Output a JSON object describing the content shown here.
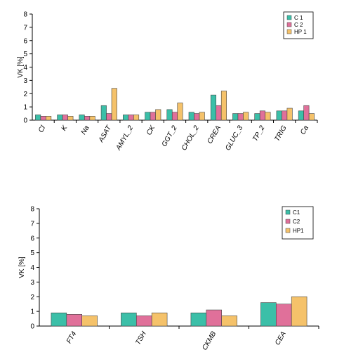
{
  "chart_data": [
    {
      "type": "bar",
      "ylabel": "VK  [%]",
      "ylim": [
        0,
        8
      ],
      "yticks": [
        0,
        1,
        2,
        3,
        4,
        5,
        6,
        7,
        8
      ],
      "grid": false,
      "legend": "top-right",
      "categories": [
        "Cl",
        "K",
        "Na",
        "ASAT",
        "AMYL_2",
        "CK",
        "GGT_2",
        "CHOL_2",
        "CREA",
        "GLUC_3",
        "TP_2",
        "TRIG",
        "Ca"
      ],
      "series": [
        {
          "name": "C 1",
          "color": "#3bbfa8",
          "values": [
            0.4,
            0.4,
            0.4,
            1.1,
            0.4,
            0.6,
            0.8,
            0.6,
            1.9,
            0.5,
            0.5,
            0.7,
            0.7
          ]
        },
        {
          "name": "C 2",
          "color": "#e0709a",
          "values": [
            0.3,
            0.4,
            0.3,
            0.5,
            0.4,
            0.6,
            0.6,
            0.5,
            1.1,
            0.5,
            0.7,
            0.7,
            1.1
          ]
        },
        {
          "name": "HP 1",
          "color": "#f5c26a",
          "values": [
            0.3,
            0.3,
            0.3,
            2.4,
            0.4,
            0.8,
            1.3,
            0.6,
            2.2,
            0.6,
            0.6,
            0.9,
            0.5
          ]
        }
      ]
    },
    {
      "type": "bar",
      "ylabel": "VK  [%]",
      "ylim": [
        0,
        8
      ],
      "yticks": [
        0,
        1,
        2,
        3,
        4,
        5,
        6,
        7,
        8
      ],
      "grid": false,
      "legend": "top-right",
      "categories": [
        "FT4",
        "TSH",
        "CKMB",
        "CEA"
      ],
      "series": [
        {
          "name": "C1",
          "color": "#3bbfa8",
          "values": [
            0.9,
            0.9,
            0.9,
            1.6
          ]
        },
        {
          "name": "C2",
          "color": "#e0709a",
          "values": [
            0.8,
            0.7,
            1.1,
            1.5
          ]
        },
        {
          "name": "HP1",
          "color": "#f5c26a",
          "values": [
            0.7,
            0.9,
            0.7,
            2.0
          ]
        }
      ]
    }
  ]
}
